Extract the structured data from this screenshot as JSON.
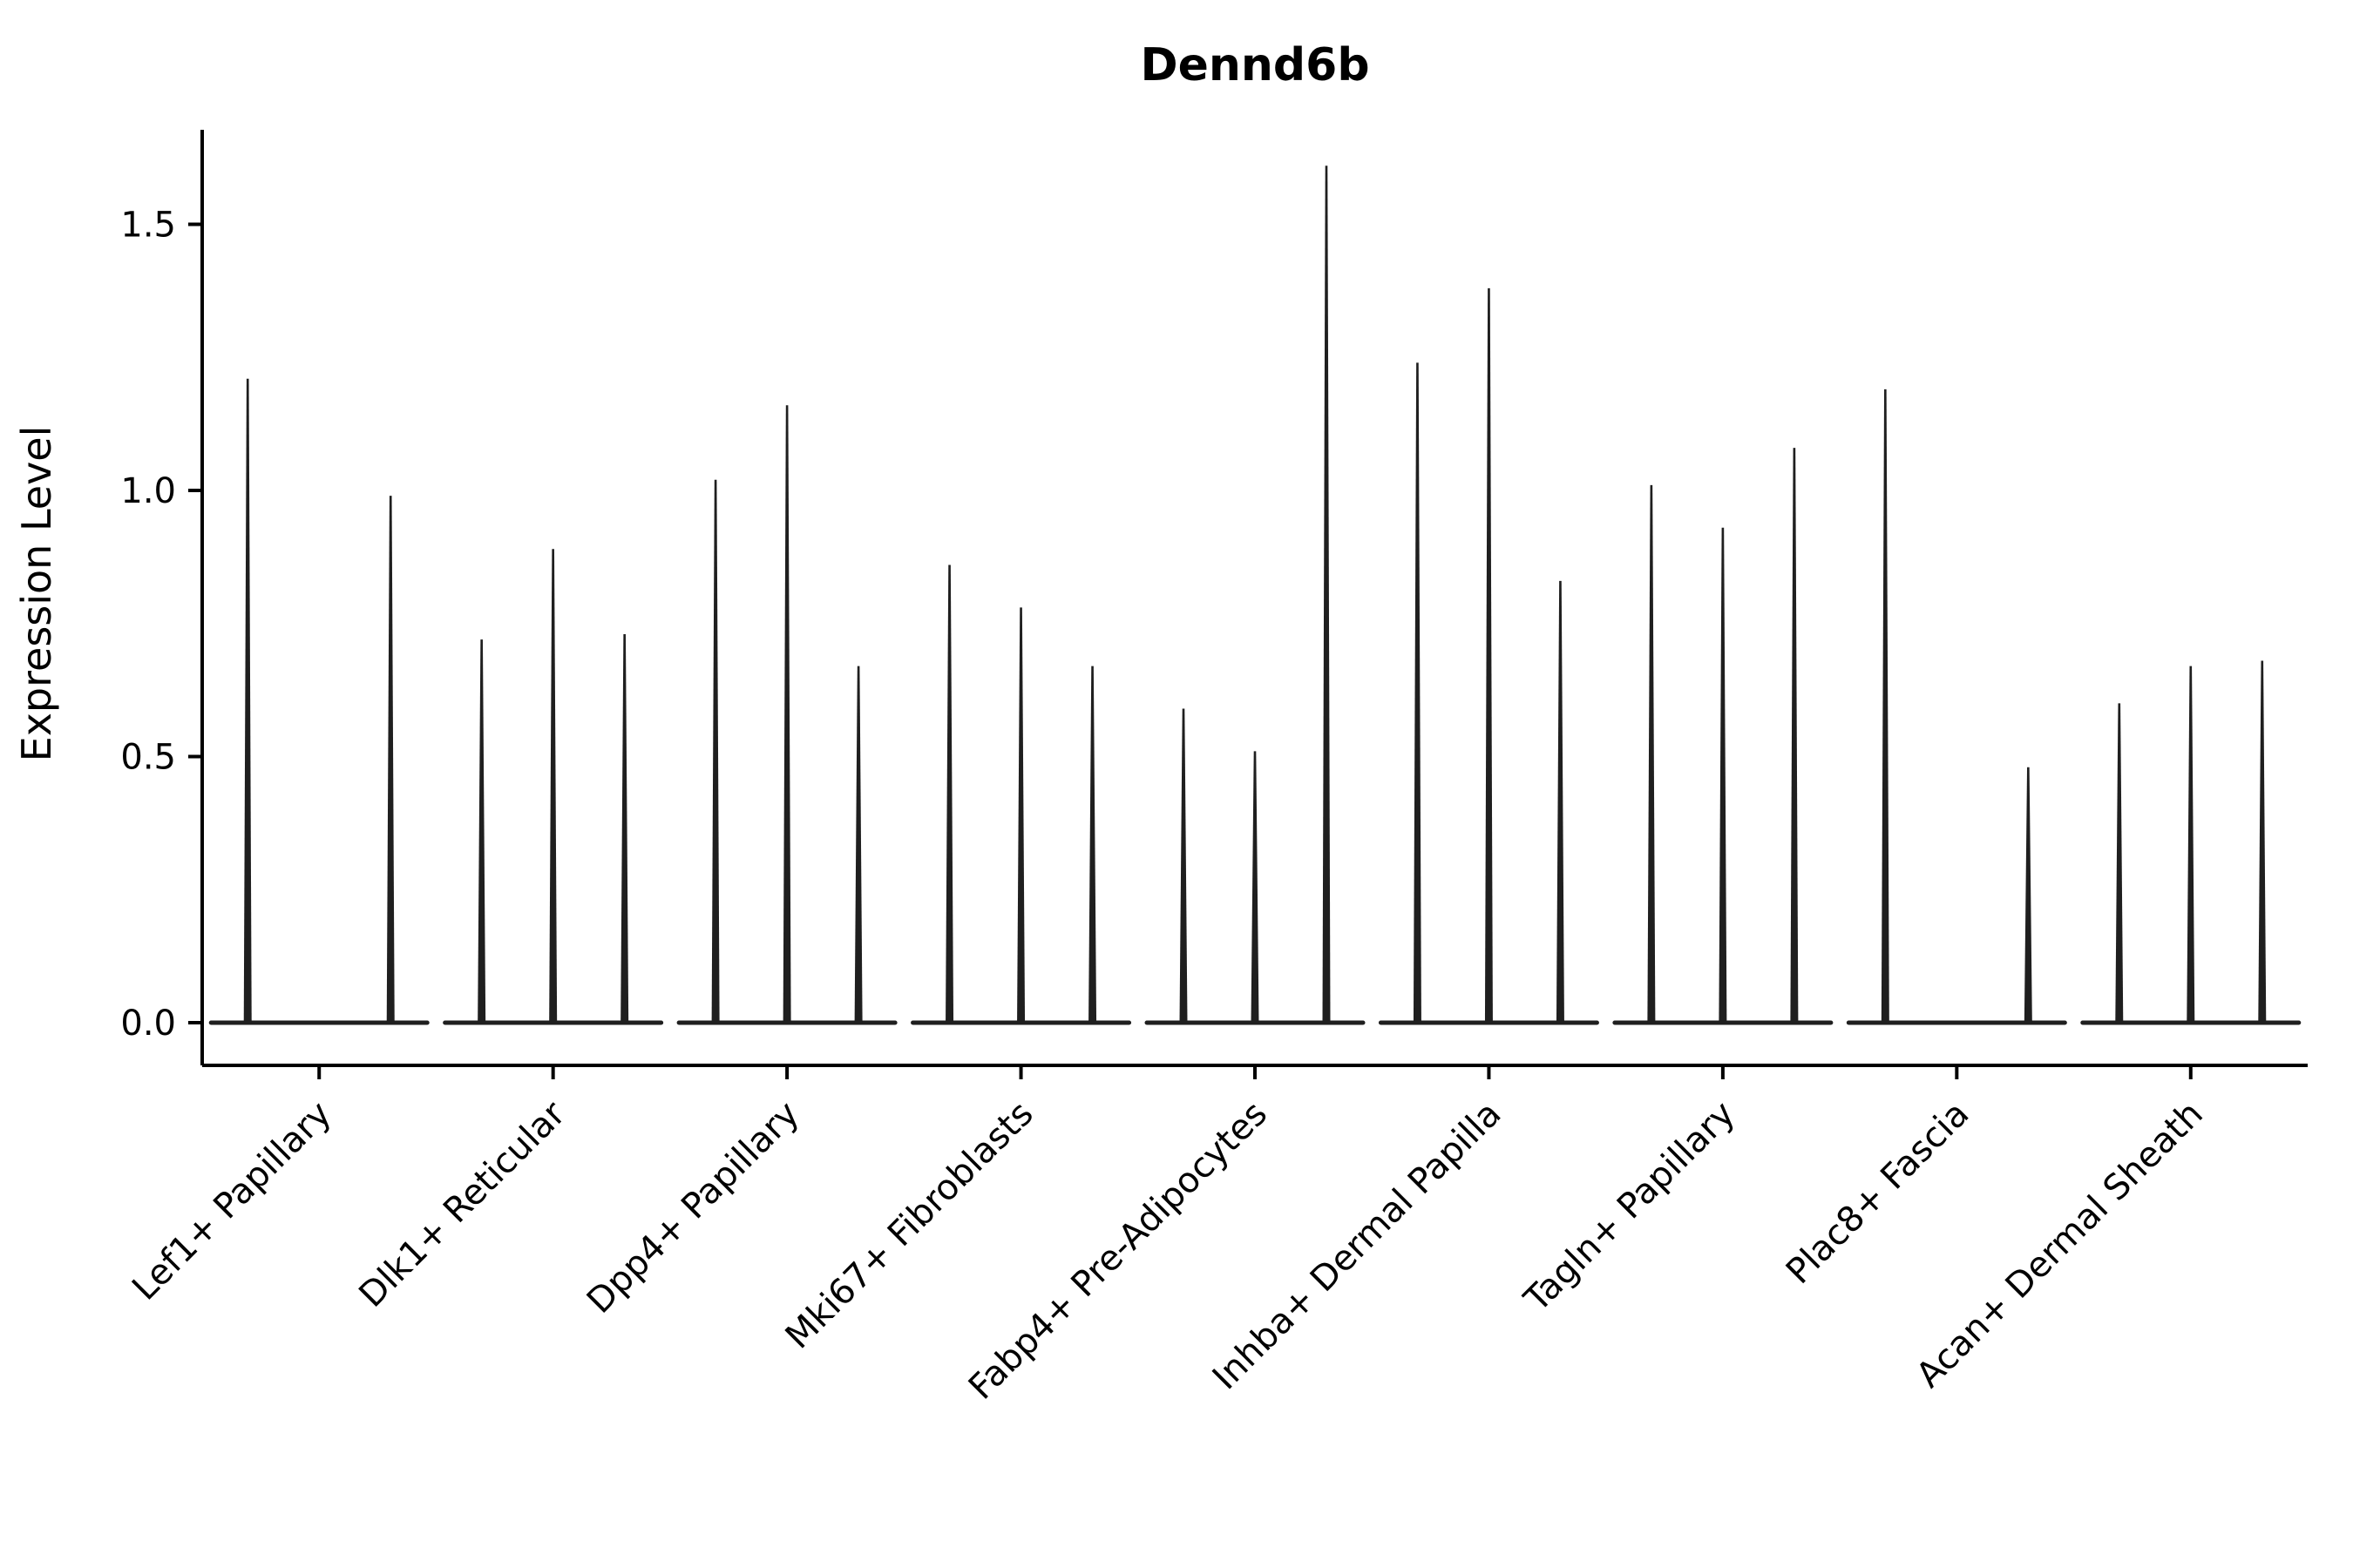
{
  "page": {
    "background": "#ffffff"
  },
  "chart_data": {
    "type": "violin",
    "title": "Dennd6b",
    "ylabel": "Expression Level",
    "xlabel": "",
    "grid": false,
    "legend": "none",
    "yticks": [
      0.0,
      0.5,
      1.0,
      1.5
    ],
    "ytick_labels": [
      "0.0",
      "0.5",
      "1.0",
      "1.5"
    ],
    "ylim": [
      -0.08,
      1.68
    ],
    "violins_per_group": 3,
    "categories": [
      "Lef1+ Papillary",
      "Dlk1+ Reticular",
      "Dpp4+ Papillary",
      "Mki67+ Fibroblasts",
      "Fabp4+ Pre-Adipocytes",
      "Inhba+ Dermal Papilla",
      "Tagln+ Papillary",
      "Plac8+ Fascia",
      "Acan+ Dermal Sheath"
    ],
    "groups": [
      {
        "category": "Lef1+ Papillary",
        "peak_expression": [
          1.21,
          0.0,
          0.99
        ]
      },
      {
        "category": "Dlk1+ Reticular",
        "peak_expression": [
          0.72,
          0.89,
          0.73
        ]
      },
      {
        "category": "Dpp4+ Papillary",
        "peak_expression": [
          1.02,
          1.16,
          0.67
        ]
      },
      {
        "category": "Mki67+ Fibroblasts",
        "peak_expression": [
          0.86,
          0.78,
          0.67
        ]
      },
      {
        "category": "Fabp4+ Pre-Adipocytes",
        "peak_expression": [
          0.59,
          0.51,
          1.61
        ]
      },
      {
        "category": "Inhba+ Dermal Papilla",
        "peak_expression": [
          1.24,
          1.38,
          0.83
        ]
      },
      {
        "category": "Tagln+ Papillary",
        "peak_expression": [
          1.01,
          0.93,
          1.08
        ]
      },
      {
        "category": "Plac8+ Fascia",
        "peak_expression": [
          1.19,
          0.0,
          0.48
        ]
      },
      {
        "category": "Acan+ Dermal Sheath",
        "peak_expression": [
          0.6,
          0.67,
          0.68
        ]
      }
    ],
    "colors": {
      "violin": "#1f1f1f",
      "axis": "#000000",
      "text": "#000000",
      "background": "#ffffff"
    }
  }
}
